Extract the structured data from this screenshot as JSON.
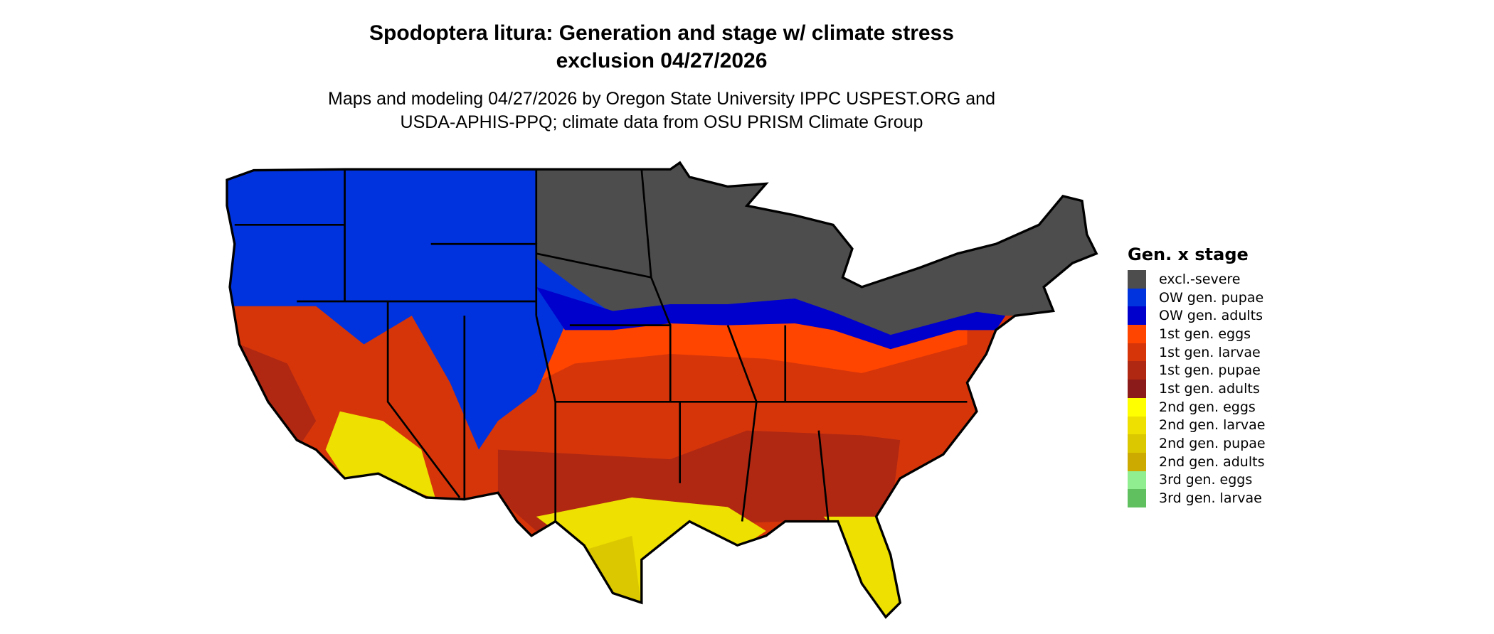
{
  "header": {
    "title_line1": "Spodoptera litura: Generation and stage w/ climate stress",
    "title_line2": "exclusion 04/27/2026",
    "subtitle_line1": "Maps and modeling 04/27/2026 by Oregon State University IPPC USPEST.ORG and",
    "subtitle_line2": "USDA-APHIS-PPQ; climate data from OSU PRISM Climate Group"
  },
  "legend": {
    "title": "Gen. x stage",
    "items": [
      {
        "label": "excl.-severe",
        "color": "#4d4d4d"
      },
      {
        "label": "OW gen. pupae",
        "color": "#0033dd"
      },
      {
        "label": "OW gen. adults",
        "color": "#0000cc"
      },
      {
        "label": "1st gen. eggs",
        "color": "#ff4500"
      },
      {
        "label": "1st gen. larvae",
        "color": "#d6350a"
      },
      {
        "label": "1st gen. pupae",
        "color": "#b02812"
      },
      {
        "label": "1st gen. adults",
        "color": "#8b1a1a"
      },
      {
        "label": "2nd gen. eggs",
        "color": "#ffff00"
      },
      {
        "label": "2nd gen. larvae",
        "color": "#eee000"
      },
      {
        "label": "2nd gen. pupae",
        "color": "#dcc800"
      },
      {
        "label": "2nd gen. adults",
        "color": "#ccaa00"
      },
      {
        "label": "3rd gen. eggs",
        "color": "#90ee90"
      },
      {
        "label": "3rd gen. larvae",
        "color": "#60c060"
      }
    ]
  }
}
